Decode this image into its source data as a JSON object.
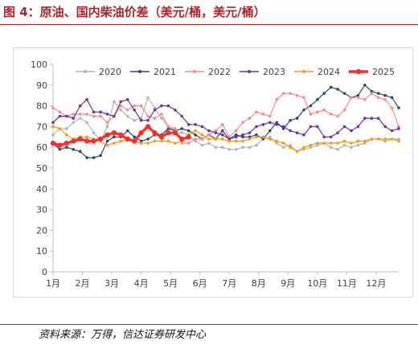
{
  "figure": {
    "title": "图 4：原油、国内柴油价差（美元/桶，美元/桶）",
    "source": "资料来源：万得，信达证券研发中心"
  },
  "chart_data": {
    "type": "line",
    "xlabel": "",
    "ylabel": "",
    "ylim": [
      0,
      100
    ],
    "yticks": [
      0,
      10,
      20,
      30,
      40,
      50,
      60,
      70,
      80,
      90,
      100
    ],
    "xlim": [
      0,
      51
    ],
    "months": [
      "1月",
      "2月",
      "3月",
      "4月",
      "5月",
      "6月",
      "7月",
      "8月",
      "9月",
      "10月",
      "11月",
      "12月"
    ],
    "grid": false,
    "legend_position": "top",
    "series": [
      {
        "name": "2020",
        "color": "#b4b4b4",
        "marker": "circle",
        "values": [
          66,
          69,
          69,
          72,
          74,
          72,
          67,
          63,
          70,
          82,
          78,
          75,
          73,
          74,
          84,
          79,
          74,
          70,
          68,
          67,
          66,
          63,
          61,
          62,
          60,
          60,
          59,
          59,
          60,
          60,
          61,
          64,
          65,
          62,
          60,
          61,
          58,
          59,
          60,
          61,
          62,
          60,
          59,
          61,
          60,
          61,
          62,
          64,
          64,
          63,
          64,
          64
        ]
      },
      {
        "name": "2021",
        "color": "#2a4a6d",
        "marker": "circle",
        "values": [
          62,
          59,
          60,
          59,
          58,
          55,
          55,
          56,
          63,
          65,
          65,
          68,
          65,
          63,
          64,
          66,
          66,
          69,
          68,
          69,
          68,
          66,
          64,
          66,
          64,
          68,
          64,
          66,
          65,
          65,
          66,
          64,
          68,
          72,
          69,
          73,
          74,
          78,
          80,
          83,
          86,
          89,
          88,
          86,
          84,
          85,
          90,
          87,
          86,
          85,
          84,
          79
        ]
      },
      {
        "name": "2022",
        "color": "#f28a8f",
        "marker": "circle",
        "values": [
          79,
          77,
          75,
          76,
          76,
          76,
          75,
          75,
          72,
          75,
          80,
          78,
          80,
          80,
          75,
          74,
          76,
          70,
          69,
          62,
          62,
          64,
          64,
          66,
          68,
          71,
          65,
          68,
          72,
          74,
          77,
          76,
          75,
          83,
          86,
          86,
          85,
          84,
          76,
          77,
          78,
          76,
          75,
          78,
          84,
          84,
          83,
          86,
          84,
          83,
          79,
          70
        ]
      },
      {
        "name": "2023",
        "color": "#7030a0",
        "marker": "circle",
        "values": [
          72,
          75,
          75,
          74,
          80,
          83,
          77,
          77,
          76,
          75,
          82,
          83,
          78,
          73,
          73,
          78,
          80,
          80,
          78,
          75,
          71,
          71,
          70,
          68,
          67,
          66,
          64,
          65,
          66,
          67,
          70,
          71,
          72,
          71,
          70,
          68,
          67,
          66,
          70,
          70,
          65,
          65,
          67,
          70,
          68,
          70,
          74,
          74,
          74,
          70,
          68,
          69
        ]
      },
      {
        "name": "2024",
        "color": "#f39c12",
        "marker": "circle",
        "values": [
          70,
          69,
          66,
          64,
          65,
          65,
          64,
          63,
          61,
          62,
          63,
          64,
          63,
          62,
          62,
          63,
          63,
          63,
          62,
          63,
          66,
          68,
          66,
          64,
          64,
          64,
          63,
          63,
          63,
          64,
          65,
          65,
          64,
          63,
          62,
          60,
          58,
          60,
          61,
          62,
          62,
          62,
          62,
          63,
          62,
          63,
          63,
          64,
          64,
          64,
          64,
          63
        ]
      },
      {
        "name": "2025",
        "color": "#ff2a2a",
        "marker": "circle",
        "values": [
          62,
          61,
          62,
          63,
          64,
          63,
          63,
          64,
          66,
          67,
          66,
          64,
          63,
          67,
          70,
          67,
          65,
          67,
          67,
          64,
          65,
          null,
          null,
          null,
          null,
          null,
          null,
          null,
          null,
          null,
          null,
          null,
          null,
          null,
          null,
          null,
          null,
          null,
          null,
          null,
          null,
          null,
          null,
          null,
          null,
          null,
          null,
          null,
          null,
          null,
          null,
          null
        ]
      }
    ]
  }
}
